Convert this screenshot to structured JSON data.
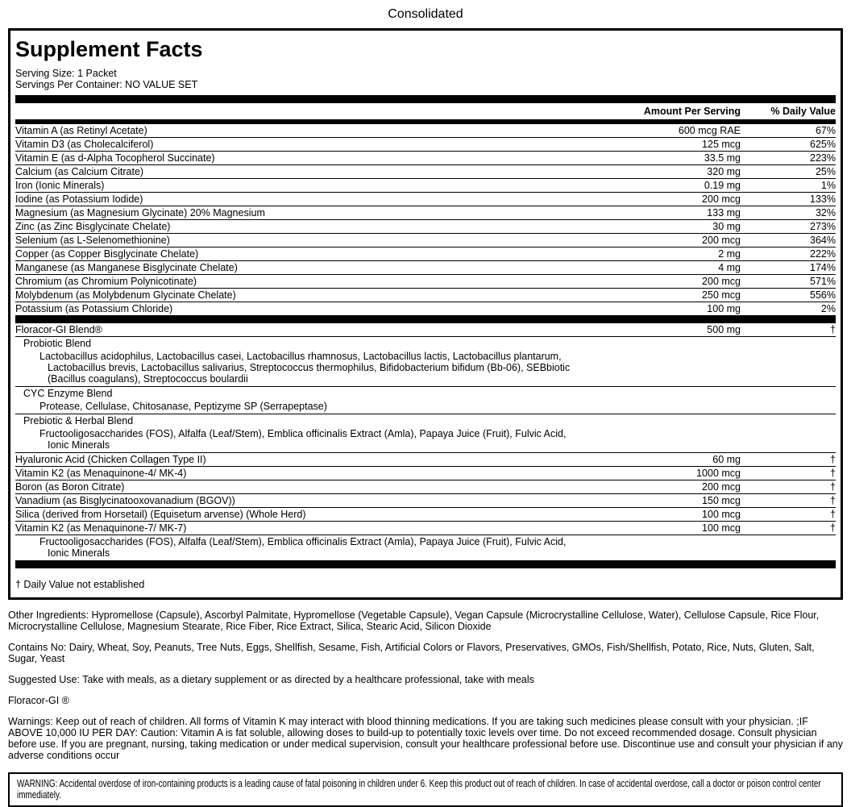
{
  "page": {
    "title": "Consolidated"
  },
  "colors": {
    "text": "#000000",
    "background": "#ffffff",
    "bar": "#000000"
  },
  "panel": {
    "title": "Supplement Facts",
    "serving_size": "Serving Size: 1 Packet",
    "servings_per_container": "Servings Per Container: NO VALUE SET",
    "columns": {
      "amount": "Amount Per Serving",
      "daily_value": "% Daily Value"
    },
    "rows": [
      {
        "type": "nutrient",
        "name": "Vitamin A (as Retinyl Acetate)",
        "amount": "600 mcg RAE",
        "dv": "67%",
        "sep": false
      },
      {
        "type": "nutrient",
        "name": "Vitamin D3 (as Cholecalciferol)",
        "amount": "125 mcg",
        "dv": "625%",
        "sep": true
      },
      {
        "type": "nutrient",
        "name": "Vitamin E (as d-Alpha Tocopherol Succinate)",
        "amount": "33.5 mg",
        "dv": "223%",
        "sep": true
      },
      {
        "type": "nutrient",
        "name": "Calcium (as Calcium Citrate)",
        "amount": "320 mg",
        "dv": "25%",
        "sep": true
      },
      {
        "type": "nutrient",
        "name": "Iron (Ionic Minerals)",
        "amount": "0.19 mg",
        "dv": "1%",
        "sep": true
      },
      {
        "type": "nutrient",
        "name": "Iodine (as Potassium Iodide)",
        "amount": "200 mcg",
        "dv": "133%",
        "sep": true
      },
      {
        "type": "nutrient",
        "name": "Magnesium (as Magnesium Glycinate) 20% Magnesium",
        "amount": "133 mg",
        "dv": "32%",
        "sep": true
      },
      {
        "type": "nutrient",
        "name": "Zinc (as Zinc Bisglycinate Chelate)",
        "amount": "30 mg",
        "dv": "273%",
        "sep": true
      },
      {
        "type": "nutrient",
        "name": "Selenium (as L-Selenomethionine)",
        "amount": "200 mcg",
        "dv": "364%",
        "sep": true
      },
      {
        "type": "nutrient",
        "name": "Copper (as Copper Bisglycinate Chelate)",
        "amount": "2 mg",
        "dv": "222%",
        "sep": true
      },
      {
        "type": "nutrient",
        "name": "Manganese (as Manganese Bisglycinate Chelate)",
        "amount": "4 mg",
        "dv": "174%",
        "sep": true
      },
      {
        "type": "nutrient",
        "name": "Chromium (as Chromium Polynicotinate)",
        "amount": "200 mcg",
        "dv": "571%",
        "sep": true
      },
      {
        "type": "nutrient",
        "name": "Molybdenum (as Molybdenum Glycinate Chelate)",
        "amount": "250 mcg",
        "dv": "556%",
        "sep": true
      },
      {
        "type": "nutrient",
        "name": "Potassium (as Potassium Chloride)",
        "amount": "100 mg",
        "dv": "2%",
        "sep": true
      },
      {
        "type": "bar"
      },
      {
        "type": "nutrient",
        "name": "Floracor-GI Blend®",
        "amount": "500 mg",
        "dv": "†",
        "sep": false
      },
      {
        "type": "blend-header",
        "name": "Probiotic Blend",
        "sep": true
      },
      {
        "type": "blend-desc",
        "name": "Lactobacillus acidophilus, Lactobacillus casei, Lactobacillus rhamnosus, Lactobacillus lactis, Lactobacillus plantarum, Lactobacillus brevis, Lactobacillus salivarius, Streptococcus thermophilus, Bifidobacterium bifidum (Bb-06), SEBbiotic (Bacillus coagulans), Streptococcus boulardii",
        "sep": false
      },
      {
        "type": "blend-header",
        "name": "CYC Enzyme Blend",
        "sep": true
      },
      {
        "type": "blend-desc",
        "name": "Protease, Cellulase, Chitosanase, Peptizyme SP (Serrapeptase)",
        "sep": false
      },
      {
        "type": "blend-header",
        "name": "Prebiotic & Herbal Blend",
        "sep": true
      },
      {
        "type": "blend-desc",
        "name": "Fructooligosaccharides (FOS), Alfalfa (Leaf/Stem), Emblica officinalis Extract (Amla), Papaya Juice (Fruit), Fulvic Acid, Ionic Minerals",
        "sep": false
      },
      {
        "type": "nutrient",
        "name": "Hyaluronic Acid (Chicken Collagen Type II)",
        "amount": "60 mg",
        "dv": "†",
        "sep": true
      },
      {
        "type": "nutrient",
        "name": "Vitamin K2 (as Menaquinone-4/ MK-4)",
        "amount": "1000 mcg",
        "dv": "†",
        "sep": true
      },
      {
        "type": "nutrient",
        "name": "Boron (as Boron Citrate)",
        "amount": "200 mcg",
        "dv": "†",
        "sep": true
      },
      {
        "type": "nutrient",
        "name": "Vanadium (as Bisglycinatooxovanadium (BGOV))",
        "amount": "150 mcg",
        "dv": "†",
        "sep": true
      },
      {
        "type": "nutrient",
        "name": "Silica (derived from Horsetail) (Equisetum arvense) (Whole Herd)",
        "amount": "100 mcg",
        "dv": "†",
        "sep": true
      },
      {
        "type": "nutrient",
        "name": "Vitamin K2 (as Menaquinone-7/ MK-7)",
        "amount": "100 mcg",
        "dv": "†",
        "sep": true
      },
      {
        "type": "blend-desc",
        "name": "Fructooligosaccharides (FOS), Alfalfa (Leaf/Stem), Emblica officinalis Extract (Amla), Papaya Juice (Fruit), Fulvic Acid, Ionic Minerals",
        "sep": true
      },
      {
        "type": "bar"
      }
    ],
    "footnote": "† Daily Value not established"
  },
  "paragraphs": {
    "other_ingredients": "Other Ingredients: Hypromellose (Capsule), Ascorbyl Palmitate, Hypromellose (Vegetable Capsule), Vegan Capsule (Microcrystalline Cellulose, Water), Cellulose Capsule, Rice Flour, Microcrystalline Cellulose, Magnesium Stearate, Rice Fiber, Rice Extract, Silica, Stearic Acid, Silicon Dioxide",
    "contains_no": "Contains No: Dairy, Wheat, Soy, Peanuts, Tree Nuts, Eggs, Shellfish, Sesame, Fish, Artificial Colors or Flavors, Preservatives, GMOs, Fish/Shellfish, Potato, Rice, Nuts, Gluten, Salt, Sugar, Yeast",
    "suggested_use": "Suggested Use: Take with meals, as a dietary supplement or as directed by a healthcare professional, take with meals",
    "product_name": "Floracor-GI ®",
    "warnings": "Warnings: Keep out of reach of children. All forms of Vitamin K may interact with blood thinning medications. If you are taking such medicines please consult with your physician. ;IF ABOVE 10,000 IU PER DAY: Caution: Vitamin A is fat soluble, allowing doses to build-up to potentially toxic levels over time. Do not exceed recommended dosage. Consult physician before use. If you are pregnant, nursing, taking medication or under medical supervision, consult your healthcare professional before use. Discontinue use and consult your physician if any adverse conditions occur"
  },
  "warning_box": "WARNING: Accidental overdose of iron-containing products is a leading cause of fatal poisoning in children under 6. Keep this product out of reach of children. In case of accidental overdose, call a doctor or poison control center immediately."
}
